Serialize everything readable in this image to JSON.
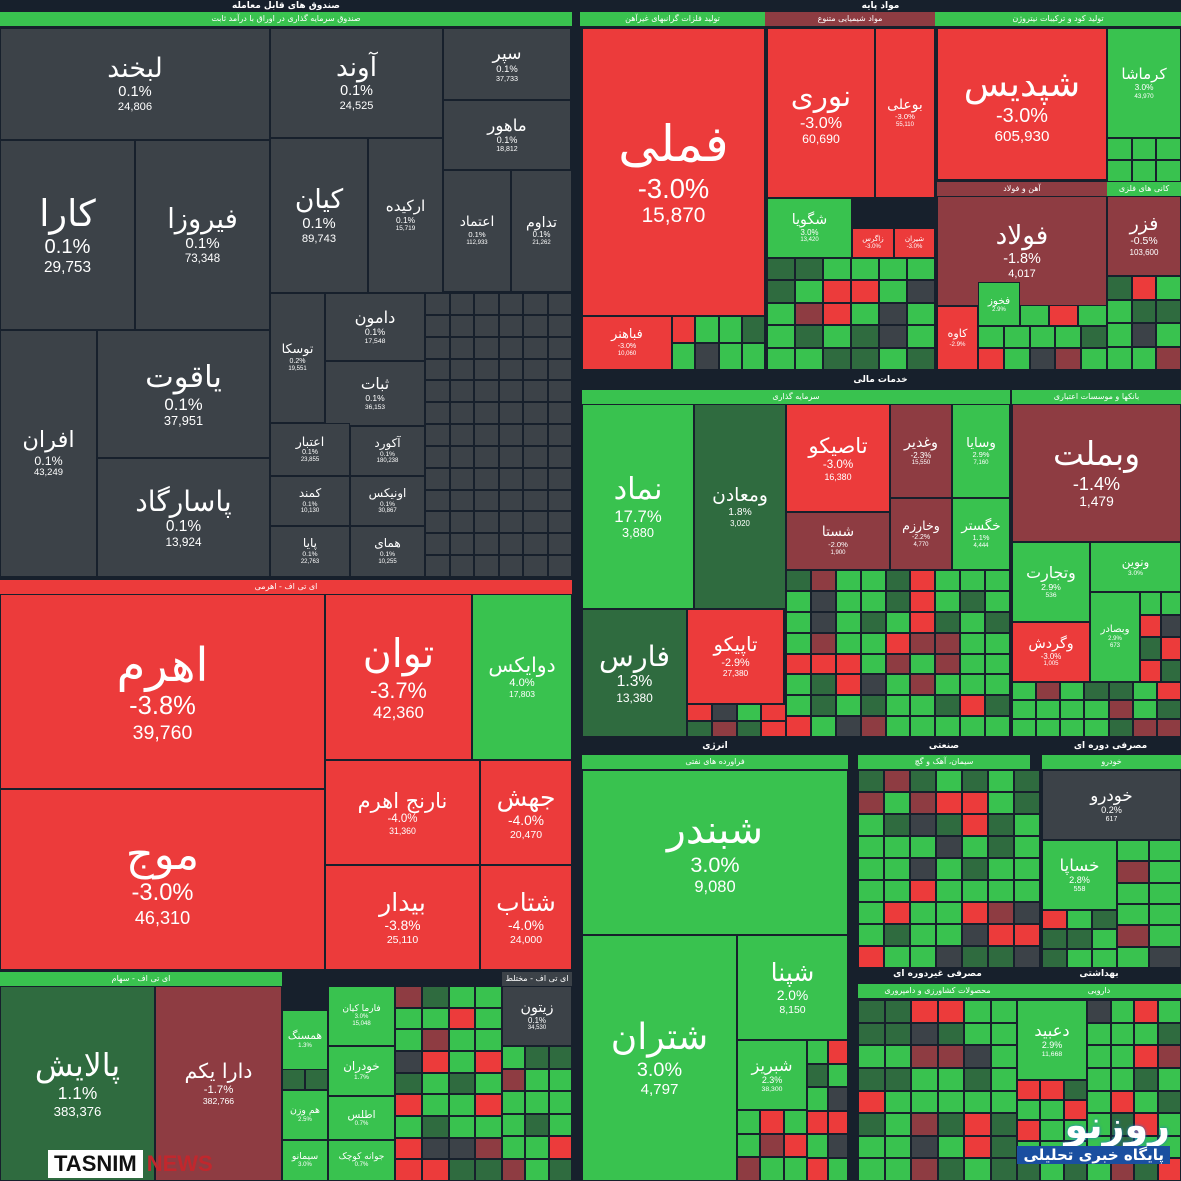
{
  "colors": {
    "red": "#ec3b3b",
    "dred": "#8e3c42",
    "green": "#39c24f",
    "dgreen": "#2f6b3f",
    "gray": "#3c4248",
    "bg": "#17202c"
  },
  "headers": [
    {
      "label": "صندوق های قابل معامله"
    },
    {
      "label": "مواد پایه"
    },
    {
      "label": "خدمات مالی"
    },
    {
      "label": "انرژی"
    },
    {
      "label": "صنعتی"
    },
    {
      "label": "مصرفی دوره ای"
    },
    {
      "label": "مصرفی غیردوره ای"
    },
    {
      "label": "بهداشتی"
    }
  ],
  "subheaders": [
    {
      "label": "صندوق سرمایه گذاری در اوراق با درآمد ثابت",
      "c": "green"
    },
    {
      "label": "ای تی اف - اهرمی",
      "c": "red"
    },
    {
      "label": "ای تی اف - سهام",
      "c": "green"
    },
    {
      "label": "ای تی اف - مختلط",
      "c": "gray"
    },
    {
      "label": "تولید فلزات گرانبهای غیرآهن",
      "c": "green"
    },
    {
      "label": "مواد شیمیایی متنوع",
      "c": "dred"
    },
    {
      "label": "تولید کود و ترکیبات نیتروژن",
      "c": "green"
    },
    {
      "label": "آهن و فولاد",
      "c": "dred"
    },
    {
      "label": "کانی های فلزی",
      "c": "green"
    },
    {
      "label": "سرمایه گذاری",
      "c": "green"
    },
    {
      "label": "بانکها و موسسات اعتباری",
      "c": "green"
    },
    {
      "label": "فراورده های نفتی",
      "c": "green"
    },
    {
      "label": "سیمان، آهک و گچ",
      "c": "green"
    },
    {
      "label": "خودرو",
      "c": "green"
    },
    {
      "label": "محصولات کشاورزی و دامپروری",
      "c": "green"
    },
    {
      "label": "دارویی",
      "c": "green"
    }
  ],
  "tiles": [
    {
      "name": "لبخند",
      "pct": "0.1%",
      "val": "24,806",
      "c": "gray"
    },
    {
      "name": "آوند",
      "pct": "0.1%",
      "val": "24,525",
      "c": "gray"
    },
    {
      "name": "سپر",
      "pct": "0.1%",
      "val": "37,733",
      "c": "gray"
    },
    {
      "name": "ماهور",
      "pct": "0.1%",
      "val": "18,812",
      "c": "gray"
    },
    {
      "name": "کارا",
      "pct": "0.1%",
      "val": "29,753",
      "c": "gray"
    },
    {
      "name": "فیروزا",
      "pct": "0.1%",
      "val": "73,348",
      "c": "gray"
    },
    {
      "name": "کیان",
      "pct": "0.1%",
      "val": "89,743",
      "c": "gray"
    },
    {
      "name": "ارکیده",
      "pct": "0.1%",
      "val": "15,719",
      "c": "gray"
    },
    {
      "name": "اعتماد",
      "pct": "0.1%",
      "val": "112,933",
      "c": "gray"
    },
    {
      "name": "تداوم",
      "pct": "0.1%",
      "val": "21,262",
      "c": "gray"
    },
    {
      "name": "افران",
      "pct": "0.1%",
      "val": "43,249",
      "c": "gray"
    },
    {
      "name": "یاقوت",
      "pct": "0.1%",
      "val": "37,951",
      "c": "gray"
    },
    {
      "name": "پاسارگاد",
      "pct": "0.1%",
      "val": "13,924",
      "c": "gray"
    },
    {
      "name": "توسکا",
      "pct": "0.2%",
      "val": "19,551",
      "c": "gray"
    },
    {
      "name": "دامون",
      "pct": "0.1%",
      "val": "17,548",
      "c": "gray"
    },
    {
      "name": "ثبات",
      "pct": "0.1%",
      "val": "36,153",
      "c": "gray"
    },
    {
      "name": "اعتبار",
      "pct": "0.1%",
      "val": "23,855",
      "c": "gray"
    },
    {
      "name": "آکورد",
      "pct": "0.1%",
      "val": "180,238",
      "c": "gray"
    },
    {
      "name": "کمند",
      "pct": "0.1%",
      "val": "10,130",
      "c": "gray"
    },
    {
      "name": "اونیکس",
      "pct": "0.1%",
      "val": "30,867",
      "c": "gray"
    },
    {
      "name": "پایا",
      "pct": "0.1%",
      "val": "22,763",
      "c": "gray"
    },
    {
      "name": "همای",
      "pct": "0.1%",
      "val": "10,255",
      "c": "gray"
    },
    {
      "name": "اهرم",
      "pct": "-3.8%",
      "val": "39,760",
      "c": "red"
    },
    {
      "name": "موج",
      "pct": "-3.0%",
      "val": "46,310",
      "c": "red"
    },
    {
      "name": "توان",
      "pct": "-3.7%",
      "val": "42,360",
      "c": "red"
    },
    {
      "name": "دوایکس",
      "pct": "4.0%",
      "val": "17,803",
      "c": "green"
    },
    {
      "name": "نارنج اهرم",
      "pct": "-4.0%",
      "val": "31,360",
      "c": "red"
    },
    {
      "name": "جهش",
      "pct": "-4.0%",
      "val": "20,470",
      "c": "red"
    },
    {
      "name": "بیدار",
      "pct": "-3.8%",
      "val": "25,110",
      "c": "red"
    },
    {
      "name": "شتاب",
      "pct": "-4.0%",
      "val": "24,000",
      "c": "red"
    },
    {
      "name": "پالایش",
      "pct": "1.1%",
      "val": "383,376",
      "c": "dgreen"
    },
    {
      "name": "دارا یکم",
      "pct": "-1.7%",
      "val": "382,766",
      "c": "dred"
    },
    {
      "name": "فارما کیان",
      "pct": "3.0%",
      "val": "15,048",
      "c": "green"
    },
    {
      "name": "همسنگ",
      "pct": "1.3%",
      "val": "",
      "c": "green"
    },
    {
      "name": "خودران",
      "pct": "1.7%",
      "val": "",
      "c": "green"
    },
    {
      "name": "هم وزن",
      "pct": "2.5%",
      "val": "",
      "c": "green"
    },
    {
      "name": "اطلس",
      "pct": "0.7%",
      "val": "",
      "c": "green"
    },
    {
      "name": "سیمانو",
      "pct": "3.0%",
      "val": "",
      "c": "green"
    },
    {
      "name": "جوانه کوچک",
      "pct": "0.7%",
      "val": "",
      "c": "green"
    },
    {
      "name": "زیتون",
      "pct": "0.1%",
      "val": "34,530",
      "c": "gray"
    },
    {
      "name": "فملی",
      "pct": "-3.0%",
      "val": "15,870",
      "c": "red"
    },
    {
      "name": "فباهنر",
      "pct": "-3.0%",
      "val": "10,060",
      "c": "red"
    },
    {
      "name": "نوری",
      "pct": "-3.0%",
      "val": "60,690",
      "c": "red"
    },
    {
      "name": "بوعلی",
      "pct": "-3.0%",
      "val": "55,110",
      "c": "red"
    },
    {
      "name": "شگویا",
      "pct": "3.0%",
      "val": "13,420",
      "c": "green"
    },
    {
      "name": "زاگرس",
      "pct": "-3.0%",
      "val": "",
      "c": "red"
    },
    {
      "name": "شیران",
      "pct": "-3.0%",
      "val": "",
      "c": "red"
    },
    {
      "name": "شپدیس",
      "pct": "-3.0%",
      "val": "605,930",
      "c": "red"
    },
    {
      "name": "کرماشا",
      "pct": "3.0%",
      "val": "43,970",
      "c": "green"
    },
    {
      "name": "فولاد",
      "pct": "-1.8%",
      "val": "4,017",
      "c": "dred"
    },
    {
      "name": "فزر",
      "pct": "-0.5%",
      "val": "103,600",
      "c": "dred"
    },
    {
      "name": "فخوز",
      "pct": "2.9%",
      "val": "",
      "c": "green"
    },
    {
      "name": "کاوه",
      "pct": "-2.9%",
      "val": "",
      "c": "red"
    },
    {
      "name": "نماد",
      "pct": "17.7%",
      "val": "3,880",
      "c": "green"
    },
    {
      "name": "ومعادن",
      "pct": "1.8%",
      "val": "3,020",
      "c": "dgreen"
    },
    {
      "name": "فارس",
      "pct": "1.3%",
      "val": "13,380",
      "c": "dgreen"
    },
    {
      "name": "تاپیکو",
      "pct": "-2.9%",
      "val": "27,380",
      "c": "red"
    },
    {
      "name": "تاصیکو",
      "pct": "-3.0%",
      "val": "16,380",
      "c": "red"
    },
    {
      "name": "وغدیر",
      "pct": "-2.3%",
      "val": "15,550",
      "c": "dred"
    },
    {
      "name": "وسایا",
      "pct": "2.9%",
      "val": "7,160",
      "c": "green"
    },
    {
      "name": "شستا",
      "pct": "-2.0%",
      "val": "1,900",
      "c": "dred"
    },
    {
      "name": "وخارزم",
      "pct": "-2.2%",
      "val": "4,770",
      "c": "dred"
    },
    {
      "name": "خگستر",
      "pct": "1.1%",
      "val": "4,444",
      "c": "green"
    },
    {
      "name": "وبملت",
      "pct": "-1.4%",
      "val": "1,479",
      "c": "dred"
    },
    {
      "name": "وتجارت",
      "pct": "2.9%",
      "val": "536",
      "c": "green"
    },
    {
      "name": "ونوین",
      "pct": "3.0%",
      "val": "",
      "c": "green"
    },
    {
      "name": "وگردش",
      "pct": "-3.0%",
      "val": "1,005",
      "c": "red"
    },
    {
      "name": "وبصادر",
      "pct": "2.9%",
      "val": "673",
      "c": "green"
    },
    {
      "name": "شبندر",
      "pct": "3.0%",
      "val": "9,080",
      "c": "green"
    },
    {
      "name": "شتران",
      "pct": "3.0%",
      "val": "4,797",
      "c": "green"
    },
    {
      "name": "شپنا",
      "pct": "2.0%",
      "val": "8,150",
      "c": "green"
    },
    {
      "name": "شبریز",
      "pct": "2.3%",
      "val": "38,300",
      "c": "green"
    },
    {
      "name": "خودرو",
      "pct": "0.2%",
      "val": "617",
      "c": "gray"
    },
    {
      "name": "خساپا",
      "pct": "2.8%",
      "val": "558",
      "c": "green"
    },
    {
      "name": "دعبید",
      "pct": "2.9%",
      "val": "11,668",
      "c": "green"
    }
  ],
  "watermarks": {
    "left": "TASNIM",
    "left2": "NEWS",
    "right": "روزنو",
    "right2": "پایگاه خبری تحلیلی"
  }
}
